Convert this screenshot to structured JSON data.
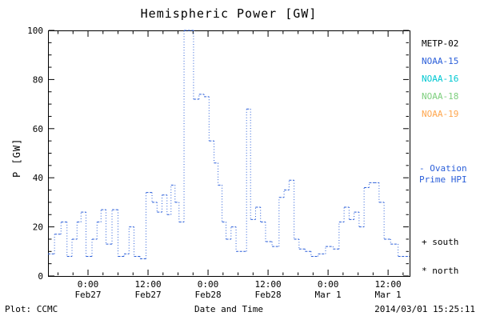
{
  "title": "Hemispheric Power [GW]",
  "axes": {
    "y_label": "P [GW]",
    "x_label": "Date and Time",
    "y_ticks": [
      0,
      20,
      40,
      60,
      80,
      100
    ],
    "x_ticks": [
      {
        "t": 8,
        "time": "0:00",
        "date": "Feb27"
      },
      {
        "t": 20,
        "time": "12:00",
        "date": "Feb27"
      },
      {
        "t": 32,
        "time": "0:00",
        "date": "Feb28"
      },
      {
        "t": 44,
        "time": "12:00",
        "date": "Feb28"
      },
      {
        "t": 56,
        "time": "0:00",
        "date": "Mar 1"
      },
      {
        "t": 68,
        "time": "12:00",
        "date": "Mar 1"
      }
    ]
  },
  "legend": {
    "satellites": [
      {
        "label": "METP-02",
        "color": "#000000"
      },
      {
        "label": "NOAA-15",
        "color": "#2b5fd9"
      },
      {
        "label": "NOAA-16",
        "color": "#00c8d2"
      },
      {
        "label": "NOAA-18",
        "color": "#7dcf7d"
      },
      {
        "label": "NOAA-19",
        "color": "#ffa64d"
      }
    ],
    "ovation_line1": "- Ovation",
    "ovation_line2": "Prime HPI",
    "ovation_color": "#2b5fd9",
    "south_label": "+ south",
    "north_label": "* north"
  },
  "footer": {
    "plot_source": "Plot: CCMC",
    "timestamp": "2014/03/01 15:25:11"
  },
  "chart_data": {
    "type": "line",
    "style": "steps-post, dotted",
    "title": "Hemispheric Power [GW]",
    "xlabel": "Date and Time",
    "ylabel": "P [GW]",
    "ylim": [
      0,
      100
    ],
    "xlim": [
      0,
      72.3
    ],
    "x_axis": "hours since start of plot window (Feb 26 ~16:00 UT, 2014)",
    "x_major_ticks_hours": [
      8,
      20,
      32,
      44,
      56,
      68
    ],
    "x_minor_step_hours": 3,
    "y_minor_step": 5,
    "grid": false,
    "legend_position": "right",
    "series": [
      {
        "name": "NOAA-15 Ovation Prime HPI",
        "color": "#2b5fd9",
        "points": [
          [
            0.0,
            9
          ],
          [
            1.3,
            17
          ],
          [
            2.6,
            22
          ],
          [
            3.8,
            8
          ],
          [
            4.8,
            15
          ],
          [
            5.8,
            22
          ],
          [
            6.6,
            26
          ],
          [
            7.6,
            8
          ],
          [
            8.8,
            15
          ],
          [
            9.8,
            22
          ],
          [
            10.6,
            27
          ],
          [
            11.6,
            13
          ],
          [
            12.8,
            27
          ],
          [
            14.0,
            8
          ],
          [
            15.2,
            9
          ],
          [
            16.2,
            20
          ],
          [
            17.2,
            8
          ],
          [
            18.4,
            7
          ],
          [
            19.6,
            34
          ],
          [
            20.8,
            30
          ],
          [
            21.8,
            26
          ],
          [
            22.8,
            33
          ],
          [
            23.8,
            25
          ],
          [
            24.6,
            37
          ],
          [
            25.4,
            30
          ],
          [
            26.2,
            22
          ],
          [
            27.2,
            100
          ],
          [
            29.1,
            72
          ],
          [
            30.2,
            74
          ],
          [
            31.2,
            73
          ],
          [
            32.2,
            55
          ],
          [
            33.2,
            46
          ],
          [
            34.0,
            37
          ],
          [
            34.8,
            22
          ],
          [
            35.6,
            15
          ],
          [
            36.6,
            20
          ],
          [
            37.6,
            10
          ],
          [
            39.7,
            68
          ],
          [
            40.5,
            23
          ],
          [
            41.5,
            28
          ],
          [
            42.5,
            22
          ],
          [
            43.5,
            14
          ],
          [
            44.8,
            12
          ],
          [
            46.2,
            32
          ],
          [
            47.2,
            35
          ],
          [
            48.2,
            39
          ],
          [
            49.2,
            15
          ],
          [
            50.2,
            11
          ],
          [
            51.4,
            10
          ],
          [
            52.6,
            8
          ],
          [
            54.0,
            9
          ],
          [
            55.5,
            12
          ],
          [
            57.0,
            11
          ],
          [
            58.2,
            22
          ],
          [
            59.2,
            28
          ],
          [
            60.2,
            23
          ],
          [
            61.2,
            26
          ],
          [
            62.2,
            20
          ],
          [
            63.2,
            36
          ],
          [
            64.2,
            38
          ],
          [
            65.2,
            38
          ],
          [
            66.2,
            30
          ],
          [
            67.2,
            15
          ],
          [
            68.5,
            13
          ],
          [
            70.0,
            8
          ],
          [
            72.3,
            8
          ]
        ]
      }
    ]
  }
}
